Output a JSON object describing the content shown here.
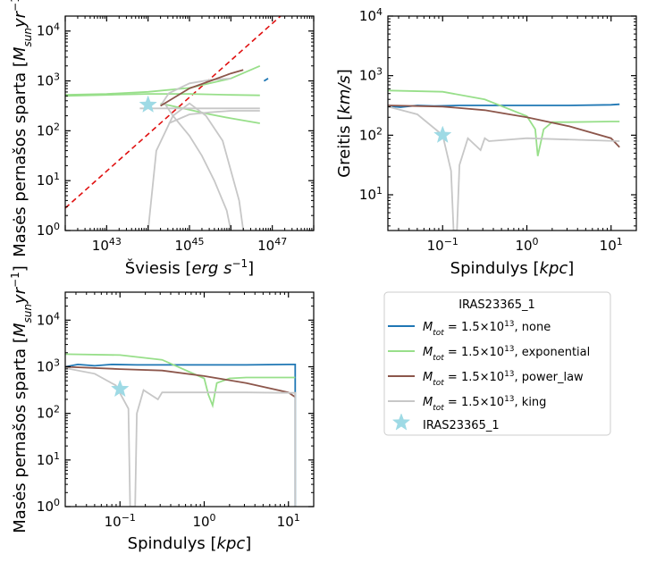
{
  "colors": {
    "none": "#1f77b4",
    "exponential": "#98df8a",
    "power_law": "#8c564b",
    "king": "#c7c7c7",
    "star": "#9edae5",
    "fit": "#e01010"
  },
  "legend": {
    "title": "IRAS23365_1",
    "entries": [
      {
        "mtot": "M",
        "sub": "tot",
        "mid": " =  1.5×10",
        "exp": "13",
        "tail": ", none",
        "key": "none"
      },
      {
        "mtot": "M",
        "sub": "tot",
        "mid": " =  1.5×10",
        "exp": "13",
        "tail": ", exponential",
        "key": "exponential"
      },
      {
        "mtot": "M",
        "sub": "tot",
        "mid": " =  1.5×10",
        "exp": "13",
        "tail": ", power_law",
        "key": "power_law"
      },
      {
        "mtot": "M",
        "sub": "tot",
        "mid": " =  1.5×10",
        "exp": "13",
        "tail": ", king",
        "key": "king"
      }
    ],
    "star_label": "IRAS23365_1"
  },
  "chart_data": [
    {
      "type": "line",
      "panel": "top-left",
      "xlabel": {
        "pre": "Šviesis [",
        "it": "erg s",
        "sup": "−1",
        "post": "]"
      },
      "ylabel": {
        "pre": "Masės pernašos sparta [",
        "it1": "M",
        "sub": "sun",
        "it2": "yr",
        "sup": "−1",
        "post": "]"
      },
      "xscale": "log",
      "yscale": "log",
      "xlim_exp": [
        42,
        48
      ],
      "ylim_exp": [
        0,
        4.3
      ],
      "xticks": [
        {
          "v": 43,
          "t": "10",
          "e": "43"
        },
        {
          "v": 45,
          "t": "10",
          "e": "45"
        },
        {
          "v": 47,
          "t": "10",
          "e": "47"
        }
      ],
      "yticks": [
        {
          "v": 0,
          "t": "10",
          "e": "0"
        },
        {
          "v": 1,
          "t": "10",
          "e": "1"
        },
        {
          "v": 2,
          "t": "10",
          "e": "2"
        },
        {
          "v": 3,
          "t": "10",
          "e": "3"
        },
        {
          "v": 4,
          "t": "10",
          "e": "4"
        }
      ],
      "series": [
        {
          "key": "fit",
          "style": "dashed",
          "x": [
            42,
            47.2
          ],
          "y": [
            0.45,
            4.3
          ]
        },
        {
          "key": "exponential",
          "x": [
            42,
            43,
            44,
            45,
            46,
            46.7
          ],
          "y": [
            2.72,
            2.74,
            2.78,
            2.86,
            3.05,
            3.3
          ]
        },
        {
          "key": "exponential",
          "x": [
            42,
            43,
            44,
            45,
            46,
            46.7
          ],
          "y": [
            2.7,
            2.72,
            2.74,
            2.74,
            2.72,
            2.71
          ]
        },
        {
          "key": "exponential",
          "x": [
            44.3,
            45,
            45.5,
            46,
            46.7
          ],
          "y": [
            2.55,
            2.42,
            2.33,
            2.25,
            2.15
          ]
        },
        {
          "key": "king",
          "x": [
            43.8,
            44,
            44.5,
            45,
            45.5,
            46,
            46.7
          ],
          "y": [
            2.45,
            2.45,
            2.45,
            2.45,
            2.45,
            2.45,
            2.45
          ]
        },
        {
          "key": "king",
          "x": [
            44.5,
            45,
            45.5,
            46,
            46.7
          ],
          "y": [
            2.15,
            2.33,
            2.37,
            2.4,
            2.4
          ]
        },
        {
          "key": "king",
          "x": [
            44.3,
            44.5,
            45,
            45.5,
            46
          ],
          "y": [
            2.5,
            2.75,
            2.95,
            3.02,
            3.05
          ]
        },
        {
          "key": "king",
          "x": [
            44.0,
            44.2,
            44.6,
            45.0,
            45.4,
            45.8,
            46.2,
            46.3
          ],
          "y": [
            0,
            1.6,
            2.3,
            2.55,
            2.3,
            1.8,
            0.6,
            0
          ]
        },
        {
          "key": "king",
          "x": [
            44.4,
            44.6,
            45.0,
            45.3,
            45.6,
            45.9,
            46.0
          ],
          "y": [
            2.55,
            2.3,
            1.9,
            1.5,
            1.0,
            0.4,
            0
          ]
        },
        {
          "key": "power_law",
          "x": [
            44.3,
            45,
            45.5,
            46,
            46.3
          ],
          "y": [
            2.5,
            2.85,
            3.0,
            3.15,
            3.22
          ]
        },
        {
          "key": "none",
          "x": [
            46.8,
            46.9
          ],
          "y": [
            3.0,
            3.05
          ]
        }
      ],
      "star": {
        "x": 44.0,
        "y": 2.52
      }
    },
    {
      "type": "line",
      "panel": "top-right",
      "xlabel": {
        "pre": "Spindulys [",
        "it": "kpc",
        "post": "]"
      },
      "ylabel": {
        "pre": "Greitis [",
        "it": "km/s",
        "post": "]"
      },
      "xscale": "log",
      "yscale": "log",
      "xlim_exp": [
        -1.65,
        1.3
      ],
      "ylim_exp": [
        0.4,
        4
      ],
      "xticks": [
        {
          "v": -1,
          "t": "10",
          "e": "−1"
        },
        {
          "v": 0,
          "t": "10",
          "e": "0"
        },
        {
          "v": 1,
          "t": "10",
          "e": "1"
        }
      ],
      "yticks": [
        {
          "v": 1,
          "t": "10",
          "e": "1"
        },
        {
          "v": 2,
          "t": "10",
          "e": "2"
        },
        {
          "v": 3,
          "t": "10",
          "e": "3"
        },
        {
          "v": 4,
          "t": "10",
          "e": "4"
        }
      ],
      "series": [
        {
          "key": "none",
          "x": [
            -1.65,
            -1.5,
            -1.3,
            -1.1,
            -0.8,
            0,
            0.5,
            1,
            1.1
          ],
          "y": [
            2.49,
            2.47,
            2.5,
            2.49,
            2.5,
            2.5,
            2.5,
            2.51,
            2.52
          ]
        },
        {
          "key": "exponential",
          "x": [
            -1.65,
            -1,
            -0.5,
            0,
            0.1,
            0.13,
            0.2,
            0.3,
            0.5,
            1,
            1.1
          ],
          "y": [
            2.75,
            2.73,
            2.6,
            2.32,
            2.1,
            1.65,
            2.1,
            2.22,
            2.22,
            2.23,
            2.23
          ]
        },
        {
          "key": "power_law",
          "x": [
            -1.65,
            -1,
            -0.5,
            0,
            0.5,
            1,
            1.1
          ],
          "y": [
            2.5,
            2.48,
            2.42,
            2.3,
            2.15,
            1.95,
            1.8
          ]
        },
        {
          "key": "king",
          "x": [
            -1.65,
            -1.3,
            -1,
            -0.9,
            -0.87,
            -0.83,
            -0.8,
            -0.7,
            -0.55,
            -0.5,
            -0.45,
            0,
            1.1
          ],
          "y": [
            2.48,
            2.35,
            2.0,
            1.4,
            0.4,
            0.4,
            1.5,
            1.95,
            1.75,
            1.95,
            1.9,
            1.95,
            1.9
          ]
        }
      ],
      "star": {
        "x": -1.0,
        "y": 2.0
      }
    },
    {
      "type": "line",
      "panel": "bottom-left",
      "xlabel": {
        "pre": "Spindulys [",
        "it": "kpc",
        "post": "]"
      },
      "ylabel": {
        "pre": "Masės pernašos sparta [",
        "it1": "M",
        "sub": "sun",
        "it2": "yr",
        "sup": "−1",
        "post": "]"
      },
      "xscale": "log",
      "yscale": "log",
      "xlim_exp": [
        -1.65,
        1.3
      ],
      "ylim_exp": [
        0,
        4.6
      ],
      "xticks": [
        {
          "v": -1,
          "t": "10",
          "e": "−1"
        },
        {
          "v": 0,
          "t": "10",
          "e": "0"
        },
        {
          "v": 1,
          "t": "10",
          "e": "1"
        }
      ],
      "yticks": [
        {
          "v": 0,
          "t": "10",
          "e": "0"
        },
        {
          "v": 1,
          "t": "10",
          "e": "1"
        },
        {
          "v": 2,
          "t": "10",
          "e": "2"
        },
        {
          "v": 3,
          "t": "10",
          "e": "3"
        },
        {
          "v": 4,
          "t": "10",
          "e": "4"
        }
      ],
      "series": [
        {
          "key": "none",
          "x": [
            -1.65,
            -1.5,
            -1.3,
            -1.1,
            -0.8,
            0,
            0.5,
            1,
            1.08,
            1.08
          ],
          "y": [
            3.0,
            3.05,
            3.02,
            3.05,
            3.04,
            3.04,
            3.04,
            3.05,
            3.05,
            0
          ]
        },
        {
          "key": "exponential",
          "x": [
            -1.65,
            -1,
            -0.5,
            0,
            0.05,
            0.1,
            0.15,
            0.3,
            0.5,
            1,
            1.08
          ],
          "y": [
            3.27,
            3.25,
            3.15,
            2.75,
            2.4,
            2.17,
            2.65,
            2.75,
            2.77,
            2.77,
            2.77
          ]
        },
        {
          "key": "power_law",
          "x": [
            -1.65,
            -1,
            -0.5,
            0,
            0.5,
            1,
            1.08
          ],
          "y": [
            3.0,
            2.95,
            2.92,
            2.8,
            2.65,
            2.45,
            2.35
          ]
        },
        {
          "key": "king",
          "x": [
            -1.65,
            -1.3,
            -1.05,
            -0.9,
            -0.88,
            -0.82,
            -0.8,
            -0.72,
            -0.55,
            -0.5,
            -0.45,
            0,
            0.5,
            1,
            1.08,
            1.08
          ],
          "y": [
            2.97,
            2.85,
            2.6,
            2.1,
            0,
            0,
            2.0,
            2.5,
            2.3,
            2.45,
            2.45,
            2.45,
            2.45,
            2.44,
            2.44,
            0
          ]
        }
      ],
      "star": {
        "x": -1.0,
        "y": 2.52
      }
    }
  ]
}
